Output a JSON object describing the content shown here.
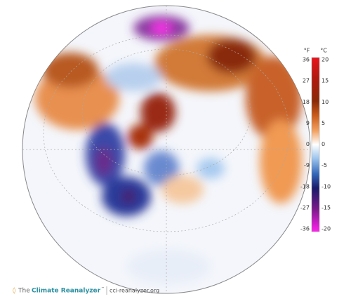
{
  "colorbar": {
    "f_unit": "°F",
    "c_unit": "°C",
    "f_ticks": [
      36,
      27,
      18,
      9,
      0,
      -9,
      -18,
      -27,
      -36
    ],
    "c_ticks": [
      20,
      15,
      10,
      5,
      0,
      -5,
      -10,
      -15,
      -20
    ]
  },
  "footer": {
    "logo_prefix": "The",
    "logo_name": "Climate Reanalyzer",
    "logo_mark": "™",
    "url": "cci-reanalyzer.org"
  }
}
